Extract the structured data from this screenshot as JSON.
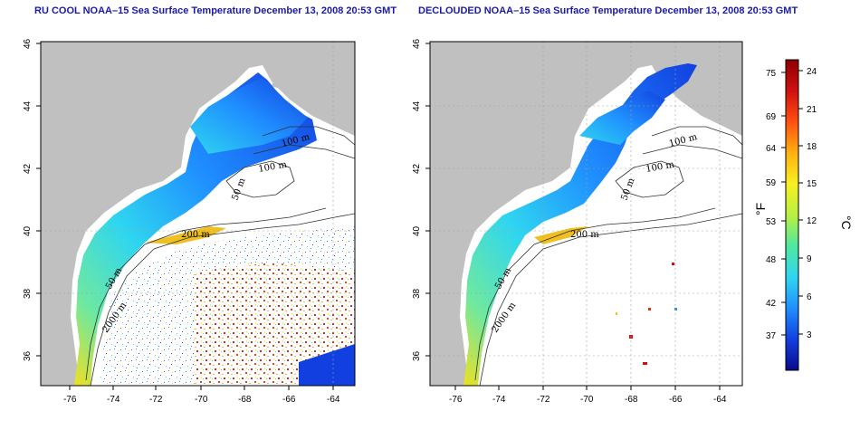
{
  "panels": [
    {
      "id": "left",
      "title": "RU COOL NOAA–15 Sea Surface Temperature December 13, 2008 20:53 GMT",
      "x_ticks": [
        "-76",
        "-74",
        "-72",
        "-70",
        "-68",
        "-66",
        "-64"
      ],
      "y_ticks": [
        "36",
        "38",
        "40",
        "42",
        "44",
        "46"
      ],
      "contour_labels": [
        "100 m",
        "100 m",
        "50 m",
        "200 m",
        "50 m",
        "2000 m"
      ]
    },
    {
      "id": "right",
      "title": "DECLOUDED NOAA–15 Sea Surface Temperature December 13, 2008 20:53 GMT",
      "x_ticks": [
        "-76",
        "-74",
        "-72",
        "-70",
        "-68",
        "-66",
        "-64"
      ],
      "y_ticks": [
        "36",
        "38",
        "40",
        "42",
        "44",
        "46"
      ],
      "contour_labels": [
        "100 m",
        "100 m",
        "50 m",
        "200 m",
        "50 m",
        "2000 m"
      ]
    }
  ],
  "map_extent": {
    "lon_range": [
      -77,
      -63
    ],
    "lat_range": [
      35,
      46
    ]
  },
  "colorbar": {
    "fahrenheit_ticks": [
      "75",
      "69",
      "64",
      "59",
      "53",
      "48",
      "42",
      "37"
    ],
    "celsius_ticks": [
      "24",
      "21",
      "18",
      "15",
      "12",
      "9",
      "6",
      "3"
    ],
    "fahrenheit_unit": "°F",
    "celsius_unit": "°C",
    "colors": [
      "#0a0a8c",
      "#1240e0",
      "#1f8fff",
      "#2fd6f0",
      "#4fe8a0",
      "#b8f040",
      "#f8f020",
      "#ffb010",
      "#ff5010",
      "#d01010",
      "#8c0000"
    ]
  },
  "colors": {
    "land": "#c0c0c0",
    "frame": "#000000",
    "grid": "#a0a0a0",
    "contour": "#303030",
    "title": "#1a1aa8"
  }
}
